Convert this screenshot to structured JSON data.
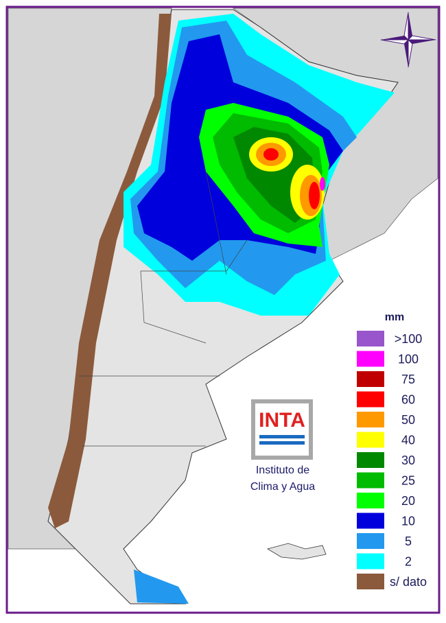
{
  "legend": {
    "title": "mm",
    "items": [
      {
        "label": ">100",
        "color": "#9955cc"
      },
      {
        "label": "100",
        "color": "#ff00ff"
      },
      {
        "label": "75",
        "color": "#c00000"
      },
      {
        "label": "60",
        "color": "#ff0000"
      },
      {
        "label": "50",
        "color": "#ff9900"
      },
      {
        "label": "40",
        "color": "#ffff00"
      },
      {
        "label": "30",
        "color": "#008800"
      },
      {
        "label": "25",
        "color": "#00bb00"
      },
      {
        "label": "20",
        "color": "#00ff00"
      },
      {
        "label": "10",
        "color": "#0000dd"
      },
      {
        "label": "5",
        "color": "#2299ee"
      },
      {
        "label": "2",
        "color": "#00ffff"
      },
      {
        "label": "s/ dato",
        "color": "#8b5a3c"
      }
    ]
  },
  "logo": {
    "name": "INTA",
    "lines": [
      "Instituto de",
      "Clima y Agua"
    ]
  }
}
